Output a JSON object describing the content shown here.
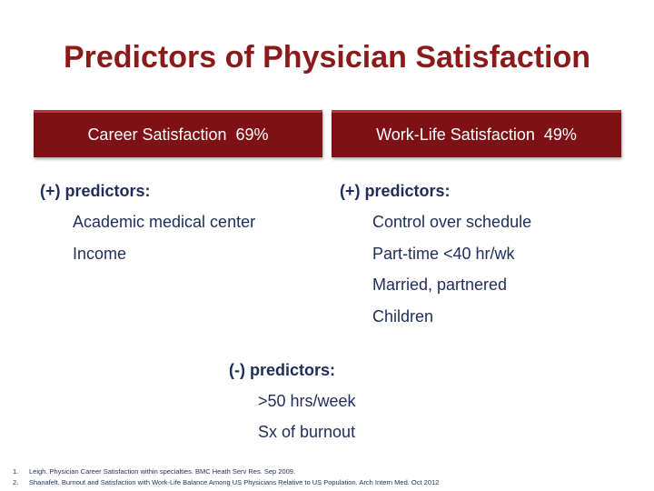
{
  "title": "Predictors of Physician Satisfaction",
  "career": {
    "header": "Career Satisfaction  69%",
    "heading": "(+) predictors:",
    "items": [
      "Academic medical center",
      "Income"
    ]
  },
  "worklife": {
    "header": "Work-Life Satisfaction  49%",
    "heading": "(+) predictors:",
    "items": [
      "Control over schedule",
      "Part-time <40 hr/wk",
      "Married, partnered",
      "Children"
    ]
  },
  "negative": {
    "heading": "(-) predictors:",
    "items": [
      ">50 hrs/week",
      "Sx of burnout"
    ]
  },
  "footnotes": [
    {
      "num": "1.",
      "text": "Leigh. Physician Career Satisfaction within specialties. BMC Heath Serv Res. Sep 2009."
    },
    {
      "num": "2.",
      "text": "Shanafelt. Burnout and Satisfaction with Work-Life Balance Among US Physicians Relative to US Population. Arch Intern Med. Oct 2012"
    }
  ],
  "colors": {
    "title": "#8b1a1a",
    "header_bg": "#7f1016",
    "body_text": "#1f2d5a"
  }
}
